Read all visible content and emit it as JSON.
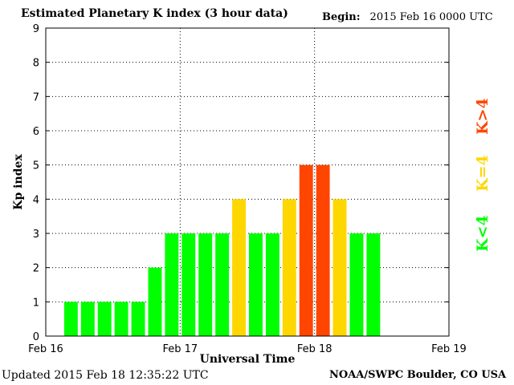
{
  "header": {
    "title": "Estimated Planetary K index (3 hour data)",
    "begin_label": "Begin:",
    "begin_value": "2015 Feb 16 0000 UTC"
  },
  "footer": {
    "updated": "Updated 2015 Feb 18 12:35:22 UTC",
    "credit": "NOAA/SWPC Boulder, CO USA"
  },
  "legend": {
    "items": [
      {
        "label": "K<4",
        "color": "#00ff00"
      },
      {
        "label": "K=4",
        "color": "#ffd700"
      },
      {
        "label": "K>4",
        "color": "#ff4500"
      }
    ]
  },
  "chart_data": {
    "type": "bar",
    "xlabel": "Universal Time",
    "ylabel": "Kp index",
    "ylim": [
      0,
      9
    ],
    "yticks": [
      "0",
      "1",
      "2",
      "3",
      "4",
      "5",
      "6",
      "7",
      "8",
      "9"
    ],
    "xticks": [
      {
        "label": "Feb 16",
        "day": 0
      },
      {
        "label": "Feb 17",
        "day": 1
      },
      {
        "label": "Feb 18",
        "day": 2
      },
      {
        "label": "Feb 19",
        "day": 3
      }
    ],
    "grid": "dotted",
    "interval_hours": 3,
    "values": [
      1,
      1,
      1,
      1,
      1,
      2,
      3,
      3,
      3,
      3,
      4,
      3,
      3,
      4,
      5,
      5,
      4,
      3,
      3
    ],
    "colors": {
      "below": "#00ff00",
      "equal": "#ffd700",
      "above": "#ff4500"
    }
  }
}
